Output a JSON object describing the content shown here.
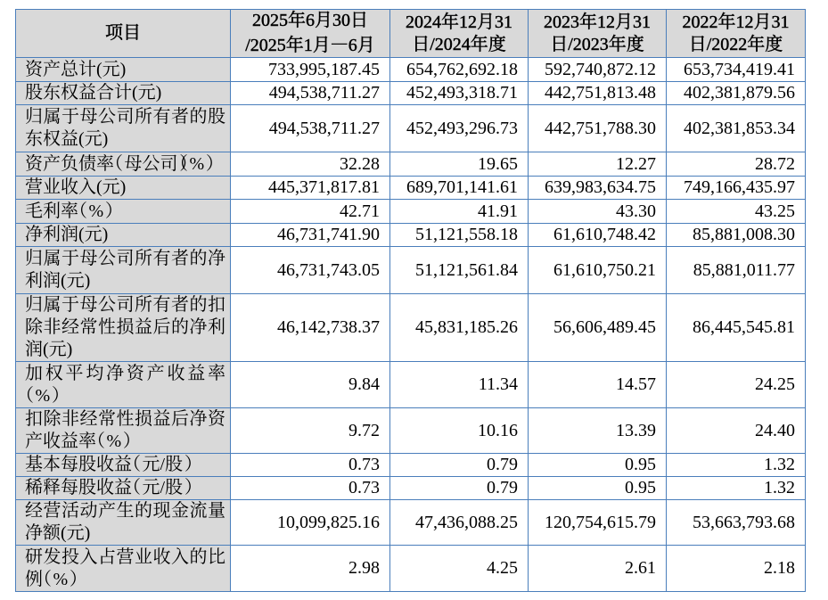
{
  "page": {
    "background": "#ffffff"
  },
  "table": {
    "style": {
      "border_color": "#4a7ebb",
      "header_bg": "#d9d9d9",
      "label_column_bg": "#d9d9d9",
      "value_cell_bg": "#ffffff",
      "text_color": "#000000"
    },
    "header": {
      "item_label": "项目",
      "periods": [
        {
          "line1": "2025年6月30日",
          "line2": "/2025年1月—6月"
        },
        {
          "line1": "2024年12月31",
          "line2": "日/2024年度"
        },
        {
          "line1": "2023年12月31",
          "line2": "日/2023年度"
        },
        {
          "line1": "2022年12月31",
          "line2": "日/2022年度"
        }
      ]
    },
    "rows": [
      {
        "label": "资产总计(元)",
        "values": [
          "733,995,187.45",
          "654,762,692.18",
          "592,740,872.12",
          "653,734,419.41"
        ]
      },
      {
        "label": "股东权益合计(元)",
        "values": [
          "494,538,711.27",
          "452,493,318.71",
          "442,751,813.48",
          "402,381,879.56"
        ]
      },
      {
        "label": "归属于母公司所有者的股东权益(元)",
        "values": [
          "494,538,711.27",
          "452,493,296.73",
          "442,751,788.30",
          "402,381,853.34"
        ]
      },
      {
        "label": "资产负债率（母公司）（%）",
        "values": [
          "32.28",
          "19.65",
          "12.27",
          "28.72"
        ]
      },
      {
        "label": "营业收入(元)",
        "values": [
          "445,371,817.81",
          "689,701,141.61",
          "639,983,634.75",
          "749,166,435.97"
        ]
      },
      {
        "label": "毛利率（%）",
        "values": [
          "42.71",
          "41.91",
          "43.30",
          "43.25"
        ]
      },
      {
        "label": "净利润(元)",
        "values": [
          "46,731,741.90",
          "51,121,558.18",
          "61,610,748.42",
          "85,881,008.30"
        ]
      },
      {
        "label": "归属于母公司所有者的净利润(元)",
        "values": [
          "46,731,743.05",
          "51,121,561.84",
          "61,610,750.21",
          "85,881,011.77"
        ]
      },
      {
        "label": "归属于母公司所有者的扣除非经常性损益后的净利润(元)",
        "values": [
          "46,142,738.37",
          "45,831,185.26",
          "56,606,489.45",
          "86,445,545.81"
        ]
      },
      {
        "label": "加权平均净资产收益率（%）",
        "values": [
          "9.84",
          "11.34",
          "14.57",
          "24.25"
        ]
      },
      {
        "label": "扣除非经常性损益后净资产收益率（%）",
        "values": [
          "9.72",
          "10.16",
          "13.39",
          "24.40"
        ]
      },
      {
        "label": "基本每股收益（元/股）",
        "values": [
          "0.73",
          "0.79",
          "0.95",
          "1.32"
        ]
      },
      {
        "label": "稀释每股收益（元/股）",
        "values": [
          "0.73",
          "0.79",
          "0.95",
          "1.32"
        ]
      },
      {
        "label": "经营活动产生的现金流量净额(元)",
        "values": [
          "10,099,825.16",
          "47,436,088.25",
          "120,754,615.79",
          "53,663,793.68"
        ]
      },
      {
        "label": "研发投入占营业收入的比例（%）",
        "values": [
          "2.98",
          "4.25",
          "2.61",
          "2.18"
        ]
      }
    ]
  }
}
